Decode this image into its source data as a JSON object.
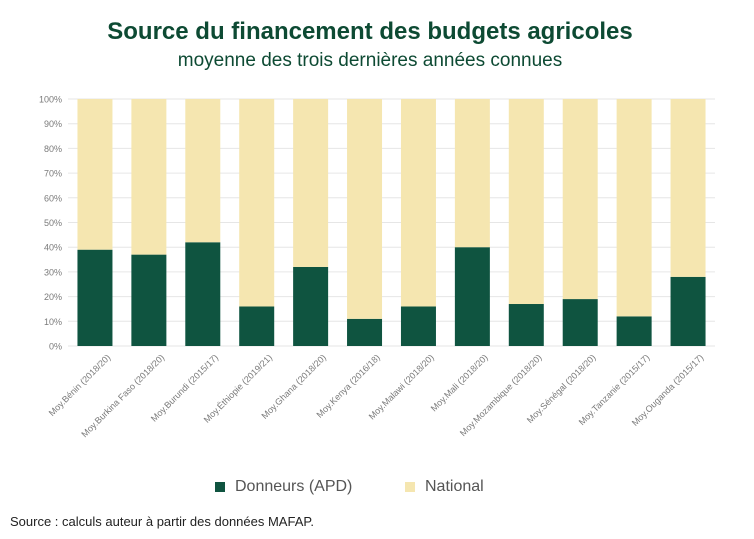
{
  "header": {
    "title": "Source du financement des budgets agricoles",
    "subtitle": "moyenne des trois dernières années connues"
  },
  "footer": {
    "source": "Source : calculs auteur à partir des données MAFAP."
  },
  "colors": {
    "donneurs": "#0f5440",
    "national": "#f5e6b0",
    "title": "#0d4a33",
    "grid": "#e6e6e6",
    "tick_text": "#7a7a7a"
  },
  "chart_data": {
    "type": "bar",
    "stacked": true,
    "normalized": true,
    "categories": [
      "Moy.Bénin (2018/20)",
      "Moy.Burkina Faso (2018/20)",
      "Moy.Burundi (2015/17)",
      "Moy.Éthiopie (2019/21)",
      "Moy.Ghana (2018/20)",
      "Moy.Kenya (2016/18)",
      "Moy.Malawi (2018/20)",
      "Moy.Mali (2018/20)",
      "Moy.Mozambique (2018/20)",
      "Moy.Sénégal (2018/20)",
      "Moy.Tanzanie (2015/17)",
      "Moy.Ouganda (2015/17)"
    ],
    "series": [
      {
        "name": "Donneurs (APD)",
        "values": [
          39,
          37,
          42,
          16,
          32,
          11,
          16,
          40,
          17,
          19,
          12,
          28
        ]
      },
      {
        "name": "National",
        "values": [
          61,
          63,
          58,
          84,
          68,
          89,
          84,
          60,
          83,
          81,
          88,
          72
        ]
      }
    ],
    "ylim": [
      0,
      100
    ],
    "yticks": [
      "0%",
      "10%",
      "20%",
      "30%",
      "40%",
      "50%",
      "60%",
      "70%",
      "80%",
      "90%",
      "100%"
    ],
    "grid": true,
    "legend": "bottom"
  }
}
